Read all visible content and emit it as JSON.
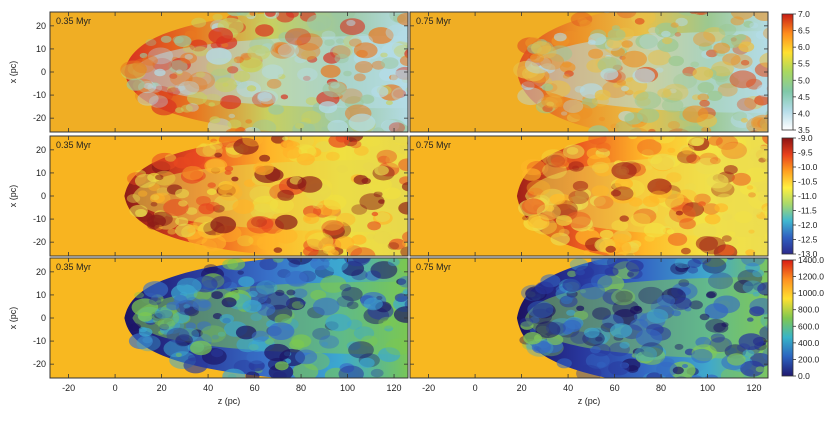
{
  "figure": {
    "x_axis": {
      "label": "z (pc)",
      "ticks": [
        "-20",
        "0",
        "20",
        "40",
        "60",
        "80",
        "100",
        "120"
      ]
    },
    "y_axis": {
      "label": "x (pc)",
      "ticks": [
        "20",
        "10",
        "0",
        "-10",
        "-20"
      ]
    },
    "time_labels": [
      "0.35 Myr",
      "0.75 Myr"
    ],
    "rows": [
      {
        "colorbar_ticks": [
          "7.0",
          "6.5",
          "6.0",
          "5.5",
          "5.0",
          "4.5",
          "4.0",
          "3.5"
        ],
        "colormap": [
          "#c81c14",
          "#ff8c1c",
          "#ffe030",
          "#a8d860",
          "#7fc8a8",
          "#b4dce8",
          "#ffffff"
        ],
        "ambient_color": "#f0ae24",
        "panels": [
          {
            "stops": [
              "#f0ae24",
              "#d83020",
              "#e87820",
              "#c8d060",
              "#9cc8a0",
              "#b4dce8"
            ],
            "front": 4,
            "cone": 0.55
          },
          {
            "stops": [
              "#f0ae24",
              "#e05020",
              "#ec9428",
              "#e8c048",
              "#9cc890",
              "#b4dce8"
            ],
            "front": 18,
            "cone": 0.62
          }
        ]
      },
      {
        "colorbar_ticks": [
          "-9.0",
          "-9.5",
          "-10.0",
          "-10.5",
          "-11.0",
          "-11.5",
          "-12.0",
          "-12.5",
          "-13.0"
        ],
        "colormap": [
          "#8c1414",
          "#e8401c",
          "#ffa020",
          "#fff040",
          "#a8d86c",
          "#40b8d0",
          "#3060c0",
          "#2c2a8c"
        ],
        "ambient_color": "#f8b420",
        "panels": [
          {
            "stops": [
              "#f8b420",
              "#8c1c18",
              "#e84820",
              "#ffb428",
              "#f0e040",
              "#e8d84c"
            ],
            "front": 4,
            "cone": 0.55
          },
          {
            "stops": [
              "#f8b420",
              "#a02018",
              "#ec5c20",
              "#ffb828",
              "#f4e444",
              "#ecdc50"
            ],
            "front": 18,
            "cone": 0.62
          }
        ]
      },
      {
        "colorbar_ticks": [
          "1400.0",
          "1200.0",
          "1000.0",
          "800.0",
          "600.0",
          "400.0",
          "200.0",
          "0.0"
        ],
        "colormap": [
          "#d81c14",
          "#ff9020",
          "#ffe030",
          "#80c850",
          "#38b4c8",
          "#2c64c0",
          "#201870"
        ],
        "ambient_color": "#f8b820",
        "panels": [
          {
            "stops": [
              "#f8b820",
              "#1c1464",
              "#2a3a9c",
              "#3870c8",
              "#3ca8d0",
              "#7cc850"
            ],
            "front": 4,
            "cone": 0.55
          },
          {
            "stops": [
              "#f8b820",
              "#1c1260",
              "#28369c",
              "#3468c4",
              "#40a8cc",
              "#80c858"
            ],
            "front": 18,
            "cone": 0.62
          }
        ]
      }
    ]
  }
}
